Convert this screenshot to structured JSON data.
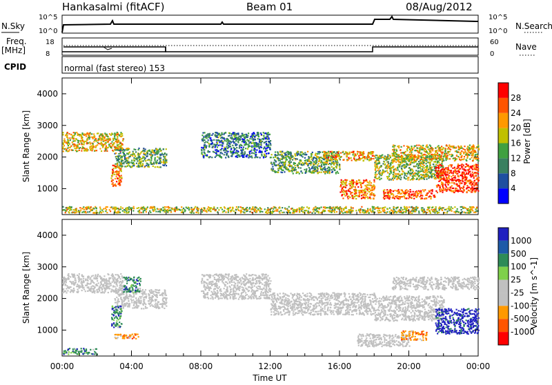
{
  "header": {
    "station": "Hankasalmi (fitACF)",
    "beam": "Beam 01",
    "date": "08/Aug/2012"
  },
  "strips": {
    "nsky_label": "N.Sky",
    "nsky_ticks": [
      "10^5",
      "10^0"
    ],
    "nsearch_label": "N.Search",
    "nsearch_ticks": [
      "10^5",
      "10^0"
    ],
    "freq_label": "Freq.",
    "freq_unit": "[MHz]",
    "freq_ticks": [
      "18",
      "8"
    ],
    "nave_label": "Nave",
    "nave_ticks": [
      "60",
      "0"
    ],
    "cpid_label": "CPID",
    "cpid_text": "normal (fast stereo) 153"
  },
  "colors": {
    "power": [
      "#0000ff",
      "#1f4fa0",
      "#3a8060",
      "#40a040",
      "#c0c000",
      "#ff9900",
      "#ff5500",
      "#ff0000"
    ],
    "velocity": [
      "#ff0000",
      "#ff5500",
      "#ff9900",
      "#c0c0c0",
      "#c0c0c0",
      "#7fd04a",
      "#2e8b57",
      "#1e5aa8",
      "#2020c0"
    ]
  },
  "chart_data": [
    {
      "type": "heatmap",
      "title": "Power",
      "xlabel": "",
      "ylabel": "Slant Range [km]",
      "xlim": [
        0,
        24
      ],
      "ylim": [
        180,
        4500
      ],
      "x_ticks": [
        "00:00",
        "04:00",
        "08:00",
        "12:00",
        "16:00",
        "20:00",
        "00:00"
      ],
      "y_ticks": [
        1000,
        2000,
        3000,
        4000
      ],
      "colorbar": {
        "label": "Power [dB]",
        "tick_labels": [
          "4",
          "8",
          "12",
          "16",
          "20",
          "24",
          "28"
        ],
        "range": [
          0,
          30
        ]
      },
      "bands": [
        {
          "t": [
            0.0,
            3.5
          ],
          "r": [
            2200,
            2800
          ],
          "level": 20
        },
        {
          "t": [
            3.0,
            6.0
          ],
          "r": [
            1700,
            2300
          ],
          "level": 14
        },
        {
          "t": [
            2.8,
            3.4
          ],
          "r": [
            1100,
            1800
          ],
          "level": 24
        },
        {
          "t": [
            8.0,
            12.0
          ],
          "r": [
            2000,
            2800
          ],
          "level": 10
        },
        {
          "t": [
            12.0,
            16.0
          ],
          "r": [
            1500,
            2200
          ],
          "level": 14
        },
        {
          "t": [
            15.0,
            18.0
          ],
          "r": [
            1900,
            2200
          ],
          "level": 22
        },
        {
          "t": [
            16.0,
            18.0
          ],
          "r": [
            700,
            1300
          ],
          "level": 24
        },
        {
          "t": [
            18.0,
            22.0
          ],
          "r": [
            1300,
            2100
          ],
          "level": 16
        },
        {
          "t": [
            19.0,
            24.0
          ],
          "r": [
            1900,
            2400
          ],
          "level": 20
        },
        {
          "t": [
            21.5,
            24.0
          ],
          "r": [
            900,
            1800
          ],
          "level": 28
        },
        {
          "t": [
            18.5,
            21.5
          ],
          "r": [
            700,
            1000
          ],
          "level": 26
        },
        {
          "t": [
            0.0,
            24.0
          ],
          "r": [
            250,
            450
          ],
          "level": 18
        }
      ]
    },
    {
      "type": "heatmap",
      "title": "Velocity",
      "xlabel": "Time UT",
      "ylabel": "Slant Range [km]",
      "xlim": [
        0,
        24
      ],
      "ylim": [
        180,
        4500
      ],
      "x_ticks": [
        "00:00",
        "04:00",
        "08:00",
        "12:00",
        "16:00",
        "20:00",
        "00:00"
      ],
      "y_ticks": [
        1000,
        2000,
        3000,
        4000
      ],
      "colorbar": {
        "label": "Velocity [m s^-1]",
        "tick_labels": [
          "1000",
          "500",
          "100",
          "25",
          "-25",
          "-100",
          "-500",
          "-1000"
        ]
      },
      "bands": [
        {
          "t": [
            0.0,
            3.5
          ],
          "r": [
            2200,
            2800
          ],
          "vel": 0
        },
        {
          "t": [
            3.0,
            6.0
          ],
          "r": [
            1700,
            2300
          ],
          "vel": 0
        },
        {
          "t": [
            2.8,
            3.4
          ],
          "r": [
            1100,
            1800
          ],
          "vel": 300
        },
        {
          "t": [
            3.5,
            4.5
          ],
          "r": [
            2200,
            2700
          ],
          "vel": 300
        },
        {
          "t": [
            8.0,
            12.0
          ],
          "r": [
            2000,
            2800
          ],
          "vel": 0
        },
        {
          "t": [
            12.0,
            18.0
          ],
          "r": [
            1500,
            2200
          ],
          "vel": 0
        },
        {
          "t": [
            17.0,
            20.0
          ],
          "r": [
            500,
            900
          ],
          "vel": 0
        },
        {
          "t": [
            18.0,
            22.0
          ],
          "r": [
            1300,
            2100
          ],
          "vel": 0
        },
        {
          "t": [
            19.0,
            24.0
          ],
          "r": [
            2300,
            2700
          ],
          "vel": 0
        },
        {
          "t": [
            21.5,
            24.0
          ],
          "r": [
            900,
            1700
          ],
          "vel": 700
        },
        {
          "t": [
            19.5,
            21.0
          ],
          "r": [
            700,
            1000
          ],
          "vel": -300
        },
        {
          "t": [
            3.0,
            4.5
          ],
          "r": [
            750,
            900
          ],
          "vel": -300
        },
        {
          "t": [
            0.0,
            2.0
          ],
          "r": [
            250,
            450
          ],
          "vel": 300
        }
      ]
    }
  ]
}
